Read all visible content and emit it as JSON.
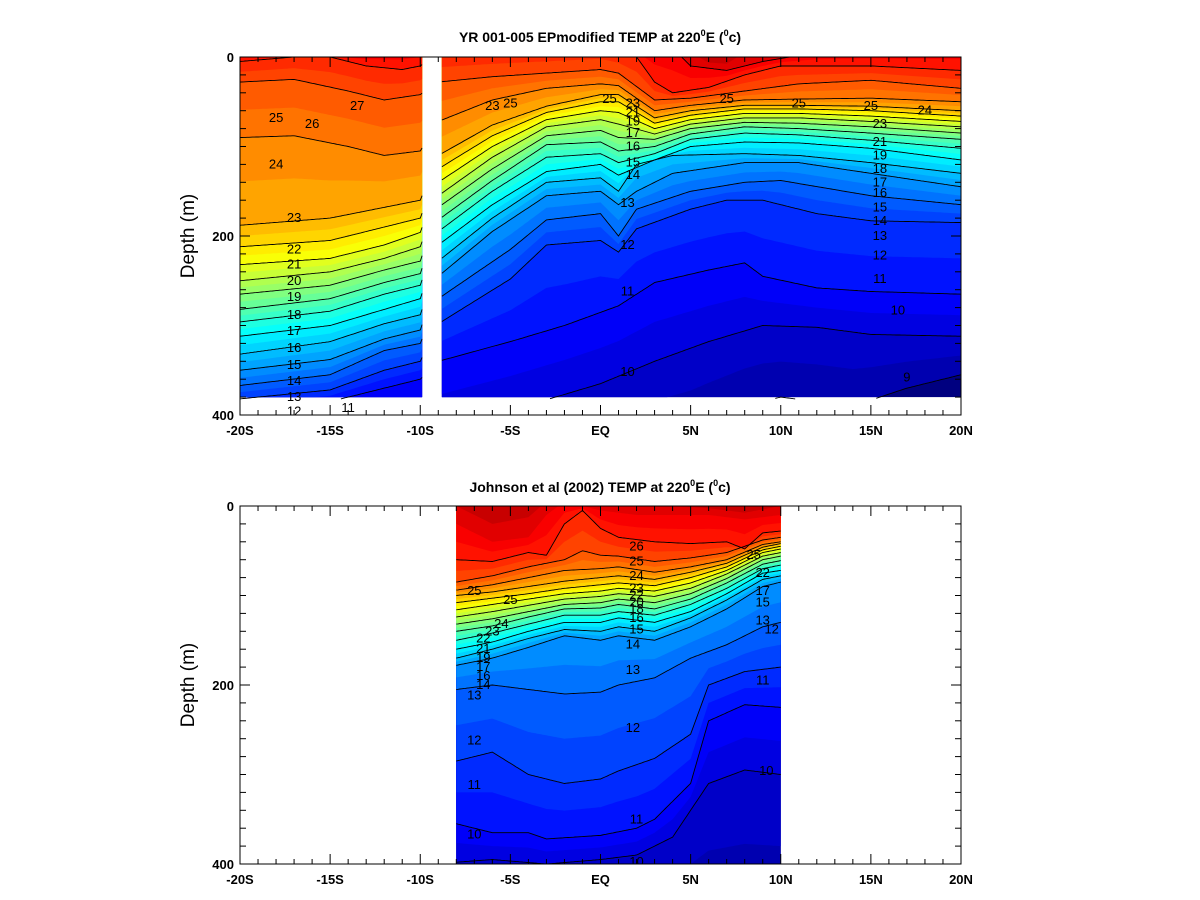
{
  "chart_data": [
    {
      "type": "heatmap",
      "title": "YR 001-005 EPmodified TEMP at 220",
      "title_sup1": "0",
      "title_mid": "E (",
      "title_sup2": "0",
      "title_end": "c)",
      "ylabel": "Depth (m)",
      "xlabel": "",
      "x_ticks": [
        "-20S",
        "-15S",
        "-10S",
        "-5S",
        "EQ",
        "5N",
        "10N",
        "15N",
        "20N"
      ],
      "y_ticks": [
        "0",
        "200",
        "400"
      ],
      "xlim": [
        -20,
        20
      ],
      "ylim": [
        0,
        400
      ],
      "data_x_range": [
        -20,
        20
      ],
      "data_depth_range": [
        0,
        380
      ],
      "gap_x_range": [
        -9.9,
        -8.8
      ],
      "contour_levels": [
        9,
        10,
        11,
        12,
        13,
        14,
        15,
        16,
        17,
        18,
        19,
        20,
        21,
        22,
        23,
        24,
        25,
        26,
        27
      ],
      "contour_labels": [
        "9",
        "10",
        "11",
        "12",
        "13",
        "14",
        "15",
        "16",
        "17",
        "18",
        "19",
        "20",
        "21",
        "22",
        "23",
        "24",
        "25",
        "26",
        "27"
      ],
      "colorscale": "jet",
      "temp_range": [
        8,
        29
      ]
    },
    {
      "type": "heatmap",
      "title": "Johnson et al (2002) TEMP at 220",
      "title_sup1": "0",
      "title_mid": "E (",
      "title_sup2": "0",
      "title_end": "c)",
      "ylabel": "Depth (m)",
      "xlabel": "",
      "x_ticks": [
        "-20S",
        "-15S",
        "-10S",
        "-5S",
        "EQ",
        "5N",
        "10N",
        "15N",
        "20N"
      ],
      "y_ticks": [
        "0",
        "200",
        "400"
      ],
      "xlim": [
        -20,
        20
      ],
      "ylim": [
        0,
        400
      ],
      "data_x_range": [
        -8,
        10
      ],
      "data_depth_range": [
        0,
        400
      ],
      "contour_levels": [
        10,
        11,
        12,
        13,
        14,
        15,
        16,
        17,
        18,
        19,
        20,
        21,
        22,
        23,
        24,
        25,
        26
      ],
      "contour_labels": [
        "10",
        "11",
        "12",
        "13",
        "14",
        "15",
        "16",
        "17",
        "18",
        "19",
        "20",
        "21",
        "22",
        "23",
        "24",
        "25",
        "26"
      ],
      "colorscale": "jet",
      "temp_range": [
        8,
        29
      ]
    }
  ]
}
